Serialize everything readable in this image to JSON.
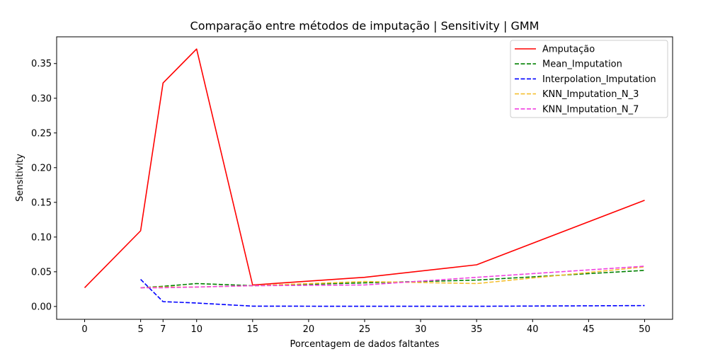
{
  "chart_data": {
    "type": "line",
    "title": "Comparação entre métodos de imputação | Sensitivity | GMM",
    "xlabel": "Porcentagem de dados faltantes",
    "ylabel": "Sensitivity",
    "xlim": [
      -2.5,
      52.5
    ],
    "ylim": [
      -0.0185,
      0.3885
    ],
    "xticks": [
      0,
      5,
      7,
      10,
      15,
      20,
      25,
      30,
      35,
      40,
      45,
      50
    ],
    "yticks": [
      0.0,
      0.05,
      0.1,
      0.15,
      0.2,
      0.25,
      0.3,
      0.35
    ],
    "ytick_labels": [
      "0.00",
      "0.05",
      "0.10",
      "0.15",
      "0.20",
      "0.25",
      "0.30",
      "0.35"
    ],
    "grid": false,
    "legend_position": "top-right",
    "series": [
      {
        "name": "Amputação",
        "color": "#ff0000",
        "style": "solid",
        "x": [
          0,
          5,
          7,
          10,
          15,
          25,
          35,
          50
        ],
        "y": [
          0.027,
          0.109,
          0.322,
          0.371,
          0.031,
          0.042,
          0.06,
          0.153
        ]
      },
      {
        "name": "Mean_Imputation",
        "color": "#008000",
        "style": "dashed",
        "x": [
          5,
          7,
          10,
          15,
          25,
          35,
          50
        ],
        "y": [
          0.027,
          0.029,
          0.033,
          0.03,
          0.034,
          0.038,
          0.052
        ]
      },
      {
        "name": "Interpolation_Imputation",
        "color": "#0000ff",
        "style": "dashed",
        "x": [
          5,
          7,
          10,
          15,
          25,
          35,
          50
        ],
        "y": [
          0.039,
          0.007,
          0.005,
          0.0005,
          0.0003,
          0.0003,
          0.0013
        ]
      },
      {
        "name": "KNN_Imputation_N_3",
        "color": "#f5c030",
        "style": "dashed",
        "x": [
          5,
          7,
          10,
          15,
          25,
          35,
          50
        ],
        "y": [
          0.027,
          0.028,
          0.028,
          0.03,
          0.036,
          0.033,
          0.057
        ]
      },
      {
        "name": "KNN_Imputation_N_7",
        "color": "#f040e0",
        "style": "dashed",
        "x": [
          5,
          7,
          10,
          15,
          25,
          35,
          50
        ],
        "y": [
          0.027,
          0.027,
          0.028,
          0.03,
          0.031,
          0.042,
          0.058
        ]
      }
    ]
  }
}
